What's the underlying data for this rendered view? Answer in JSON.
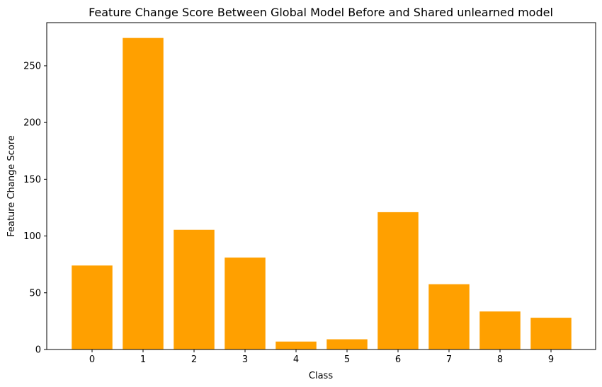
{
  "chart_data": {
    "type": "bar",
    "title": "Feature Change Score Between Global Model Before and Shared unlearned model",
    "xlabel": "Class",
    "ylabel": "Feature Change Score",
    "categories": [
      "0",
      "1",
      "2",
      "3",
      "4",
      "5",
      "6",
      "7",
      "8",
      "9"
    ],
    "values": [
      74,
      274.5,
      105.5,
      81,
      7,
      9,
      121,
      57.5,
      33.5,
      28
    ],
    "ylim": [
      0,
      288
    ],
    "yticks": [
      0,
      50,
      100,
      150,
      200,
      250
    ],
    "color": "#ffa000",
    "grid": false,
    "legend": "none"
  }
}
